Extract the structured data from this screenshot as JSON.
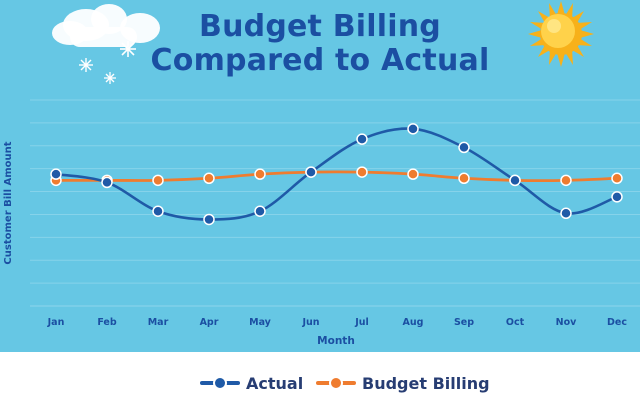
{
  "page": {
    "title_line1": "Budget Billing",
    "title_line2": "Compared to Actual"
  },
  "chart_data": {
    "type": "line",
    "title": "Budget Billing Compared to Actual",
    "xlabel": "Month",
    "ylabel": "Customer Bill Amount",
    "categories": [
      "Jan",
      "Feb",
      "Mar",
      "Apr",
      "May",
      "Jun",
      "Jul",
      "Aug",
      "Sep",
      "Oct",
      "Nov",
      "Dec"
    ],
    "series": [
      {
        "name": "Actual",
        "values": [
          6.4,
          6.0,
          4.6,
          4.2,
          4.6,
          6.5,
          8.1,
          8.6,
          7.7,
          6.1,
          4.5,
          5.3
        ],
        "color": "#1f5aa7"
      },
      {
        "name": "Budget Billing",
        "values": [
          6.1,
          6.1,
          6.1,
          6.2,
          6.4,
          6.5,
          6.5,
          6.4,
          6.2,
          6.1,
          6.1,
          6.2
        ],
        "color": "#ef7c2f"
      }
    ],
    "ylim": [
      0,
      10
    ],
    "y_tick_labels_visible": false,
    "grid": true,
    "legend_position": "bottom-center",
    "background_color": "#66c7e4",
    "grid_color": "#86d3ea"
  }
}
